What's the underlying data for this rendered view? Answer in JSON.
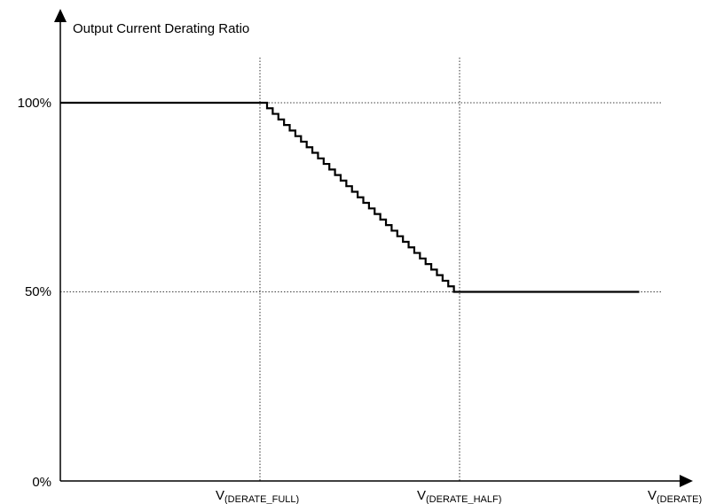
{
  "chart_data": {
    "type": "line",
    "title": "",
    "ylabel": "Output Current Derating Ratio",
    "xlabel": "V(DERATE)",
    "y_ticks": [
      "100%",
      "50%",
      "0%"
    ],
    "y_tick_values": [
      100,
      50,
      0
    ],
    "ylim": [
      0,
      100
    ],
    "x_ticks": [
      {
        "main": "V",
        "sub": "(DERATE_FULL)"
      },
      {
        "main": "V",
        "sub": "(DERATE_HALF)"
      },
      {
        "main": "V",
        "sub": "(DERATE)"
      }
    ],
    "x_tick_values": [
      1,
      2,
      3
    ],
    "xlim": [
      0,
      3
    ],
    "guide_lines": {
      "x": [
        1,
        2
      ],
      "y": [
        100,
        50
      ]
    },
    "grid": "dotted guide lines",
    "series": [
      {
        "values_description": "",
        "segments": [
          {
            "kind": "flat",
            "x": [
              0,
              1
            ],
            "y": 100
          },
          {
            "kind": "staircase",
            "x": [
              1,
              2
            ],
            "y": [
              100,
              50
            ],
            "steps": 34
          },
          {
            "kind": "flat",
            "x": [
              2,
              2.9
            ],
            "y": 50
          }
        ]
      }
    ]
  }
}
